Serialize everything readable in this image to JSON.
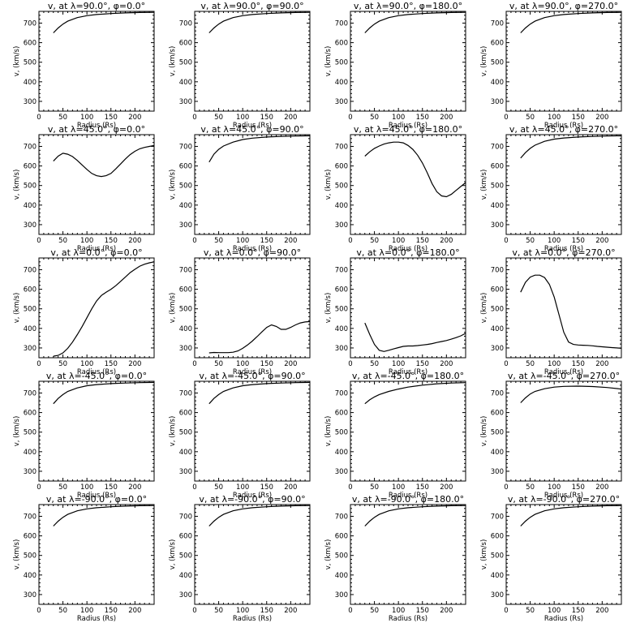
{
  "figure": {
    "axis_color": "#000000",
    "line_color": "#000000",
    "background": "#ffffff"
  },
  "chart_data": [
    {
      "type": "line",
      "title": "v, at λ=90.0°, φ=0.0°",
      "xlabel": "Radius (Rs)",
      "ylabel": "v, (km/s)",
      "xlim": [
        0,
        240
      ],
      "ylim": [
        250,
        760
      ],
      "xticks": [
        0,
        50,
        100,
        150,
        200
      ],
      "yticks": [
        300,
        400,
        500,
        600,
        700
      ],
      "x": [
        30,
        40,
        50,
        60,
        80,
        100,
        120,
        150,
        180,
        210,
        240
      ],
      "y": [
        650,
        675,
        695,
        710,
        728,
        738,
        744,
        749,
        752,
        754,
        755
      ]
    },
    {
      "type": "line",
      "title": "v, at λ=90.0°, φ=90.0°",
      "xlabel": "Radius (Rs)",
      "ylabel": "v, (km/s)",
      "xlim": [
        0,
        240
      ],
      "ylim": [
        250,
        760
      ],
      "xticks": [
        0,
        50,
        100,
        150,
        200
      ],
      "yticks": [
        300,
        400,
        500,
        600,
        700
      ],
      "x": [
        30,
        40,
        50,
        60,
        80,
        100,
        120,
        150,
        180,
        210,
        240
      ],
      "y": [
        650,
        675,
        695,
        710,
        728,
        738,
        744,
        749,
        752,
        754,
        755
      ]
    },
    {
      "type": "line",
      "title": "v, at λ=90.0°, φ=180.0°",
      "xlabel": "Radius (Rs)",
      "ylabel": "v, (km/s)",
      "xlim": [
        0,
        240
      ],
      "ylim": [
        250,
        760
      ],
      "xticks": [
        0,
        50,
        100,
        150,
        200
      ],
      "yticks": [
        300,
        400,
        500,
        600,
        700
      ],
      "x": [
        30,
        40,
        50,
        60,
        80,
        100,
        120,
        150,
        180,
        210,
        240
      ],
      "y": [
        650,
        675,
        695,
        710,
        728,
        738,
        744,
        749,
        752,
        754,
        755
      ]
    },
    {
      "type": "line",
      "title": "v, at λ=90.0°, φ=270.0°",
      "xlabel": "Radius (Rs)",
      "ylabel": "v, (km/s)",
      "xlim": [
        0,
        240
      ],
      "ylim": [
        250,
        760
      ],
      "xticks": [
        0,
        50,
        100,
        150,
        200
      ],
      "yticks": [
        300,
        400,
        500,
        600,
        700
      ],
      "x": [
        30,
        40,
        50,
        60,
        80,
        100,
        120,
        150,
        180,
        210,
        240
      ],
      "y": [
        650,
        675,
        695,
        710,
        728,
        738,
        744,
        749,
        752,
        754,
        755
      ]
    },
    {
      "type": "line",
      "title": "v, at λ=45.0°, φ=0.0°",
      "xlabel": "Radius (Rs)",
      "ylabel": "v, (km/s)",
      "xlim": [
        0,
        240
      ],
      "ylim": [
        250,
        760
      ],
      "xticks": [
        0,
        50,
        100,
        150,
        200
      ],
      "yticks": [
        300,
        400,
        500,
        600,
        700
      ],
      "x": [
        30,
        40,
        50,
        60,
        70,
        80,
        90,
        100,
        110,
        120,
        130,
        140,
        150,
        160,
        170,
        180,
        190,
        200,
        210,
        220,
        230,
        240
      ],
      "y": [
        625,
        650,
        665,
        660,
        648,
        628,
        605,
        582,
        562,
        550,
        546,
        550,
        562,
        585,
        610,
        635,
        658,
        675,
        688,
        695,
        700,
        705
      ]
    },
    {
      "type": "line",
      "title": "v, at λ=45.0°, φ=90.0°",
      "xlabel": "Radius (Rs)",
      "ylabel": "v, (km/s)",
      "xlim": [
        0,
        240
      ],
      "ylim": [
        250,
        760
      ],
      "xticks": [
        0,
        50,
        100,
        150,
        200
      ],
      "yticks": [
        300,
        400,
        500,
        600,
        700
      ],
      "x": [
        30,
        40,
        50,
        60,
        80,
        100,
        120,
        150,
        180,
        210,
        240
      ],
      "y": [
        620,
        660,
        685,
        702,
        722,
        735,
        742,
        748,
        751,
        753,
        754
      ]
    },
    {
      "type": "line",
      "title": "v, at λ=45.0°, φ=180.0°",
      "xlabel": "Radius (Rs)",
      "ylabel": "v, (km/s)",
      "xlim": [
        0,
        240
      ],
      "ylim": [
        250,
        760
      ],
      "xticks": [
        0,
        50,
        100,
        150,
        200
      ],
      "yticks": [
        300,
        400,
        500,
        600,
        700
      ],
      "x": [
        30,
        40,
        50,
        60,
        70,
        80,
        90,
        100,
        110,
        120,
        130,
        140,
        150,
        160,
        170,
        180,
        190,
        200,
        210,
        220,
        230,
        240
      ],
      "y": [
        650,
        672,
        690,
        702,
        712,
        718,
        722,
        722,
        718,
        705,
        685,
        655,
        615,
        565,
        510,
        468,
        447,
        443,
        455,
        475,
        495,
        515
      ]
    },
    {
      "type": "line",
      "title": "v, at λ=45.0°, φ=270.0°",
      "xlabel": "Radius (Rs)",
      "ylabel": "v, (km/s)",
      "xlim": [
        0,
        240
      ],
      "ylim": [
        250,
        760
      ],
      "xticks": [
        0,
        50,
        100,
        150,
        200
      ],
      "yticks": [
        300,
        400,
        500,
        600,
        700
      ],
      "x": [
        30,
        40,
        50,
        60,
        80,
        100,
        120,
        150,
        180,
        210,
        240
      ],
      "y": [
        640,
        668,
        690,
        706,
        726,
        737,
        743,
        748,
        751,
        753,
        754
      ]
    },
    {
      "type": "line",
      "title": "v, at λ=0.0°, φ=0.0°",
      "xlabel": "Radius (Rs)",
      "ylabel": "v, (km/s)",
      "xlim": [
        0,
        240
      ],
      "ylim": [
        250,
        760
      ],
      "xticks": [
        0,
        50,
        100,
        150,
        200
      ],
      "yticks": [
        300,
        400,
        500,
        600,
        700
      ],
      "x": [
        30,
        40,
        50,
        60,
        70,
        80,
        90,
        100,
        110,
        120,
        130,
        140,
        150,
        160,
        170,
        180,
        190,
        200,
        210,
        220,
        230,
        240
      ],
      "y": [
        258,
        262,
        275,
        298,
        330,
        368,
        410,
        455,
        500,
        540,
        568,
        585,
        600,
        618,
        640,
        662,
        685,
        702,
        718,
        728,
        735,
        740
      ]
    },
    {
      "type": "line",
      "title": "v, at λ=0.0°, φ=90.0°",
      "xlabel": "Radius (Rs)",
      "ylabel": "v, (km/s)",
      "xlim": [
        0,
        240
      ],
      "ylim": [
        250,
        760
      ],
      "xticks": [
        0,
        50,
        100,
        150,
        200
      ],
      "yticks": [
        300,
        400,
        500,
        600,
        700
      ],
      "x": [
        30,
        40,
        50,
        60,
        70,
        80,
        90,
        100,
        110,
        120,
        130,
        140,
        150,
        160,
        170,
        180,
        190,
        200,
        210,
        220,
        230,
        240
      ],
      "y": [
        275,
        277,
        276,
        276,
        276,
        278,
        285,
        298,
        315,
        335,
        358,
        382,
        405,
        418,
        410,
        395,
        395,
        405,
        418,
        428,
        433,
        435
      ]
    },
    {
      "type": "line",
      "title": "v, at λ=0.0°, φ=180.0°",
      "xlabel": "Radius (Rs)",
      "ylabel": "v, (km/s)",
      "xlim": [
        0,
        240
      ],
      "ylim": [
        250,
        760
      ],
      "xticks": [
        0,
        50,
        100,
        150,
        200
      ],
      "yticks": [
        300,
        400,
        500,
        600,
        700
      ],
      "x": [
        30,
        40,
        50,
        60,
        70,
        80,
        90,
        100,
        110,
        120,
        130,
        140,
        150,
        160,
        170,
        180,
        190,
        200,
        210,
        220,
        230,
        240
      ],
      "y": [
        428,
        370,
        318,
        288,
        282,
        288,
        295,
        302,
        308,
        310,
        310,
        312,
        315,
        318,
        322,
        328,
        333,
        338,
        345,
        353,
        362,
        375
      ]
    },
    {
      "type": "line",
      "title": "v, at λ=0.0°, φ=270.0°",
      "xlabel": "Radius (Rs)",
      "ylabel": "v, (km/s)",
      "xlim": [
        0,
        240
      ],
      "ylim": [
        250,
        760
      ],
      "xticks": [
        0,
        50,
        100,
        150,
        200
      ],
      "yticks": [
        300,
        400,
        500,
        600,
        700
      ],
      "x": [
        30,
        40,
        50,
        60,
        70,
        80,
        90,
        100,
        110,
        120,
        130,
        140,
        150,
        160,
        170,
        180,
        190,
        200,
        210,
        220,
        230,
        240
      ],
      "y": [
        585,
        635,
        662,
        672,
        672,
        660,
        625,
        560,
        470,
        380,
        330,
        318,
        315,
        314,
        313,
        311,
        308,
        306,
        304,
        302,
        300,
        298
      ]
    },
    {
      "type": "line",
      "title": "v, at λ=-45.0°, φ=0.0°",
      "xlabel": "Radius (Rs)",
      "ylabel": "v, (km/s)",
      "xlim": [
        0,
        240
      ],
      "ylim": [
        250,
        760
      ],
      "xticks": [
        0,
        50,
        100,
        150,
        200
      ],
      "yticks": [
        300,
        400,
        500,
        600,
        700
      ],
      "x": [
        30,
        40,
        50,
        60,
        80,
        100,
        120,
        150,
        180,
        210,
        240
      ],
      "y": [
        645,
        672,
        692,
        708,
        726,
        737,
        743,
        748,
        751,
        753,
        754
      ]
    },
    {
      "type": "line",
      "title": "v, at λ=-45.0°, φ=90.0°",
      "xlabel": "Radius (Rs)",
      "ylabel": "v, (km/s)",
      "xlim": [
        0,
        240
      ],
      "ylim": [
        250,
        760
      ],
      "xticks": [
        0,
        50,
        100,
        150,
        200
      ],
      "yticks": [
        300,
        400,
        500,
        600,
        700
      ],
      "x": [
        30,
        40,
        50,
        60,
        80,
        100,
        120,
        150,
        180,
        210,
        240
      ],
      "y": [
        645,
        672,
        692,
        708,
        726,
        737,
        743,
        748,
        751,
        753,
        754
      ]
    },
    {
      "type": "line",
      "title": "v, at λ=-45.0°, φ=180.0°",
      "xlabel": "Radius (Rs)",
      "ylabel": "v, (km/s)",
      "xlim": [
        0,
        240
      ],
      "ylim": [
        250,
        760
      ],
      "xticks": [
        0,
        50,
        100,
        150,
        200
      ],
      "yticks": [
        300,
        400,
        500,
        600,
        700
      ],
      "x": [
        30,
        40,
        50,
        60,
        80,
        100,
        120,
        150,
        180,
        210,
        240
      ],
      "y": [
        645,
        665,
        680,
        692,
        708,
        720,
        730,
        740,
        747,
        751,
        753
      ]
    },
    {
      "type": "line",
      "title": "v, at λ=-45.0°, φ=270.0°",
      "xlabel": "Radius (Rs)",
      "ylabel": "v, (km/s)",
      "xlim": [
        0,
        240
      ],
      "ylim": [
        250,
        760
      ],
      "xticks": [
        0,
        50,
        100,
        150,
        200
      ],
      "yticks": [
        300,
        400,
        500,
        600,
        700
      ],
      "x": [
        30,
        40,
        50,
        60,
        80,
        100,
        120,
        150,
        180,
        210,
        240
      ],
      "y": [
        650,
        675,
        695,
        708,
        722,
        730,
        734,
        735,
        733,
        728,
        720
      ]
    },
    {
      "type": "line",
      "title": "v, at λ=-90.0°, φ=0.0°",
      "xlabel": "Radius (Rs)",
      "ylabel": "v, (km/s)",
      "xlim": [
        0,
        240
      ],
      "ylim": [
        250,
        760
      ],
      "xticks": [
        0,
        50,
        100,
        150,
        200
      ],
      "yticks": [
        300,
        400,
        500,
        600,
        700
      ],
      "x": [
        30,
        40,
        50,
        60,
        80,
        100,
        120,
        150,
        180,
        210,
        240
      ],
      "y": [
        650,
        675,
        695,
        710,
        728,
        738,
        744,
        749,
        752,
        754,
        755
      ]
    },
    {
      "type": "line",
      "title": "v, at λ=-90.0°, φ=90.0°",
      "xlabel": "Radius (Rs)",
      "ylabel": "v, (km/s)",
      "xlim": [
        0,
        240
      ],
      "ylim": [
        250,
        760
      ],
      "xticks": [
        0,
        50,
        100,
        150,
        200
      ],
      "yticks": [
        300,
        400,
        500,
        600,
        700
      ],
      "x": [
        30,
        40,
        50,
        60,
        80,
        100,
        120,
        150,
        180,
        210,
        240
      ],
      "y": [
        650,
        675,
        695,
        710,
        728,
        738,
        744,
        749,
        752,
        754,
        755
      ]
    },
    {
      "type": "line",
      "title": "v, at λ=-90.0°, φ=180.0°",
      "xlabel": "Radius (Rs)",
      "ylabel": "v, (km/s)",
      "xlim": [
        0,
        240
      ],
      "ylim": [
        250,
        760
      ],
      "xticks": [
        0,
        50,
        100,
        150,
        200
      ],
      "yticks": [
        300,
        400,
        500,
        600,
        700
      ],
      "x": [
        30,
        40,
        50,
        60,
        80,
        100,
        120,
        150,
        180,
        210,
        240
      ],
      "y": [
        650,
        675,
        695,
        710,
        728,
        738,
        744,
        749,
        752,
        754,
        755
      ]
    },
    {
      "type": "line",
      "title": "v, at λ=-90.0°, φ=270.0°",
      "xlabel": "Radius (Rs)",
      "ylabel": "v, (km/s)",
      "xlim": [
        0,
        240
      ],
      "ylim": [
        250,
        760
      ],
      "xticks": [
        0,
        50,
        100,
        150,
        200
      ],
      "yticks": [
        300,
        400,
        500,
        600,
        700
      ],
      "x": [
        30,
        40,
        50,
        60,
        80,
        100,
        120,
        150,
        180,
        210,
        240
      ],
      "y": [
        650,
        675,
        695,
        710,
        728,
        738,
        744,
        749,
        752,
        754,
        755
      ]
    }
  ]
}
